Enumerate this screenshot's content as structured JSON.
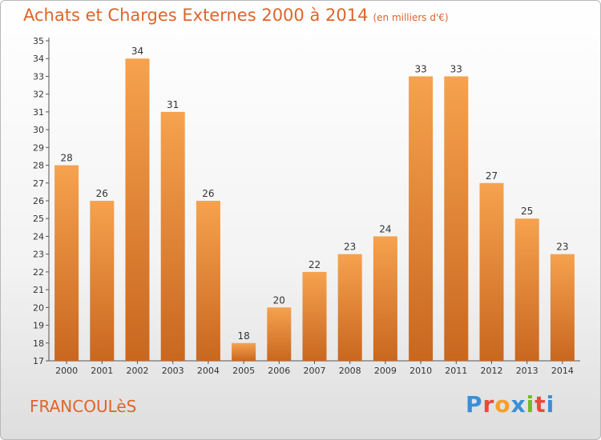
{
  "title": "Achats et Charges Externes 2000 à 2014",
  "subtitle": "(en milliers d'€)",
  "place": "FRANCOULèS",
  "logo": {
    "letters": [
      "P",
      "r",
      "o",
      "x",
      "i",
      "t",
      "i"
    ],
    "colors": [
      "#3a8fd8",
      "#e94b3c",
      "#f4a02a",
      "#3a8fd8",
      "#77b82a",
      "#e94b3c",
      "#3a8fd8"
    ]
  },
  "colors": {
    "bar_top": "#f6a24e",
    "bar_bottom": "#c9671f",
    "accent": "#e0642a"
  },
  "chart_data": {
    "type": "bar",
    "categories": [
      "2000",
      "2001",
      "2002",
      "2003",
      "2004",
      "2005",
      "2006",
      "2007",
      "2008",
      "2009",
      "2010",
      "2011",
      "2012",
      "2013",
      "2014"
    ],
    "values": [
      28,
      26,
      34,
      31,
      26,
      18,
      20,
      22,
      23,
      24,
      33,
      33,
      27,
      25,
      23
    ],
    "title": "Achats et Charges Externes 2000 à 2014",
    "ylim": [
      17,
      35
    ],
    "yticks": [
      17,
      18,
      19,
      20,
      21,
      22,
      23,
      24,
      25,
      26,
      27,
      28,
      29,
      30,
      31,
      32,
      33,
      34,
      35
    ],
    "grid": false,
    "legend": "none"
  }
}
